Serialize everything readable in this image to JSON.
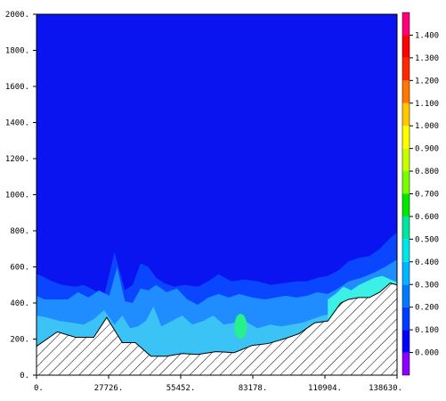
{
  "chart_data": {
    "type": "heatmap",
    "title": "",
    "xlabel": "",
    "ylabel": "",
    "xlim": [
      0,
      138630
    ],
    "ylim": [
      0,
      2000
    ],
    "x_ticks": [
      {
        "v": 0,
        "label": "0."
      },
      {
        "v": 27726,
        "label": "27726."
      },
      {
        "v": 55452,
        "label": "55452."
      },
      {
        "v": 83178,
        "label": "83178."
      },
      {
        "v": 110904,
        "label": "110904."
      },
      {
        "v": 138630,
        "label": "138630."
      }
    ],
    "y_ticks": [
      {
        "v": 0,
        "label": "0."
      },
      {
        "v": 200,
        "label": "200."
      },
      {
        "v": 400,
        "label": "400."
      },
      {
        "v": 600,
        "label": "600."
      },
      {
        "v": 800,
        "label": "800."
      },
      {
        "v": 1000,
        "label": "1000."
      },
      {
        "v": 1200,
        "label": "1200."
      },
      {
        "v": 1400,
        "label": "1400."
      },
      {
        "v": 1600,
        "label": "1600."
      },
      {
        "v": 1800,
        "label": "1800."
      },
      {
        "v": 2000,
        "label": "2000."
      }
    ],
    "colorbar": {
      "levels": [
        -0.1,
        0.0,
        0.1,
        0.2,
        0.3,
        0.4,
        0.5,
        0.6,
        0.7,
        0.8,
        0.9,
        1.0,
        1.1,
        1.2,
        1.3,
        1.4,
        1.5
      ],
      "colors": [
        "#8a00ff",
        "#0000ff",
        "#003cff",
        "#0078ff",
        "#00b4ff",
        "#00e6e6",
        "#00e6a0",
        "#00e600",
        "#78ff00",
        "#c8ff00",
        "#ffff00",
        "#ffc800",
        "#ff7800",
        "#ff2800",
        "#ff0000",
        "#ff0078",
        "#ff00ff"
      ],
      "labels": [
        {
          "v": 0.0,
          "label": "0.000"
        },
        {
          "v": 0.1,
          "label": "0.100"
        },
        {
          "v": 0.2,
          "label": "0.200"
        },
        {
          "v": 0.3,
          "label": "0.300"
        },
        {
          "v": 0.4,
          "label": "0.400"
        },
        {
          "v": 0.5,
          "label": "0.500"
        },
        {
          "v": 0.6,
          "label": "0.600"
        },
        {
          "v": 0.7,
          "label": "0.700"
        },
        {
          "v": 0.8,
          "label": "0.800"
        },
        {
          "v": 0.9,
          "label": "0.900"
        },
        {
          "v": 1.0,
          "label": "1.000"
        },
        {
          "v": 1.1,
          "label": "1.100"
        },
        {
          "v": 1.2,
          "label": "1.200"
        },
        {
          "v": 1.3,
          "label": "1.300"
        },
        {
          "v": 1.4,
          "label": "1.400"
        }
      ]
    },
    "field_colors": {
      "background": "#0a14f0",
      "band1": "#0a46ff",
      "band2": "#1f8cff",
      "band3": "#3cc3f5",
      "band4": "#3cf0e6",
      "band5": "#28f08c"
    },
    "terrain": {
      "x": [
        0,
        3000,
        8000,
        15000,
        22000,
        27000,
        33000,
        38000,
        44000,
        50000,
        56000,
        62000,
        69000,
        76000,
        83000,
        89000,
        95000,
        101000,
        107000,
        112000,
        117000,
        120000,
        124000,
        128000,
        132000,
        136000,
        138630
      ],
      "y": [
        160,
        190,
        240,
        210,
        210,
        320,
        180,
        180,
        105,
        105,
        120,
        115,
        130,
        125,
        165,
        175,
        200,
        230,
        290,
        300,
        400,
        420,
        430,
        430,
        460,
        510,
        500
      ]
    },
    "contours": [
      {
        "level": 0.1,
        "x": [
          0,
          2000,
          6000,
          10000,
          15000,
          18000,
          21000,
          26000,
          30000,
          34000,
          37000,
          40000,
          43000,
          46000,
          49000,
          53000,
          57000,
          62000,
          66000,
          70000,
          75000,
          80000,
          85000,
          90000,
          95000,
          100000,
          104000,
          108000,
          112000,
          116000,
          120000,
          124000,
          128000,
          132000,
          136000,
          138630
        ],
        "y": [
          560,
          550,
          520,
          500,
          490,
          500,
          480,
          440,
          680,
          470,
          500,
          620,
          600,
          540,
          510,
          490,
          500,
          490,
          520,
          560,
          520,
          530,
          520,
          500,
          510,
          520,
          520,
          540,
          550,
          580,
          630,
          650,
          660,
          700,
          760,
          790
        ]
      },
      {
        "level": 0.2,
        "x": [
          0,
          3000,
          7000,
          12000,
          16000,
          20000,
          24000,
          28000,
          31000,
          34000,
          37000,
          40000,
          43000,
          46000,
          50000,
          54000,
          58000,
          62000,
          66000,
          70000,
          74000,
          78000,
          83000,
          88000,
          92000,
          96000,
          100000,
          104000,
          108000,
          112000,
          116000,
          120000,
          125000,
          130000,
          134000,
          138630
        ],
        "y": [
          440,
          420,
          420,
          420,
          460,
          430,
          470,
          440,
          600,
          410,
          400,
          480,
          470,
          500,
          460,
          480,
          420,
          390,
          430,
          450,
          430,
          450,
          430,
          420,
          430,
          440,
          430,
          440,
          460,
          450,
          480,
          520,
          540,
          570,
          600,
          640
        ]
      },
      {
        "level": 0.3,
        "x": [
          0,
          4000,
          9000,
          14000,
          18000,
          22000,
          26000,
          30000,
          33000,
          36000,
          39000,
          42000,
          45000,
          48000,
          52000,
          56000,
          60000,
          64000,
          68000,
          72000,
          76000,
          80000,
          85000,
          90000,
          94000,
          98000,
          102000,
          106000,
          110000,
          114000,
          118000,
          122000,
          126000,
          130000,
          134000,
          138630
        ],
        "y": [
          330,
          320,
          300,
          290,
          280,
          310,
          360,
          280,
          330,
          260,
          270,
          300,
          380,
          270,
          300,
          330,
          280,
          300,
          330,
          280,
          290,
          300,
          260,
          280,
          270,
          280,
          290,
          310,
          330,
          340,
          380,
          430,
          440,
          450,
          470,
          490
        ]
      },
      {
        "level": 0.4,
        "x": [
          112000,
          115000,
          118000,
          121000,
          124000,
          127000,
          130000,
          133000,
          136000,
          138630
        ],
        "y": [
          420,
          450,
          490,
          470,
          500,
          520,
          540,
          550,
          530,
          515
        ]
      }
    ],
    "blobs": [
      {
        "level": 0.4,
        "cx": 78500,
        "cy": 270,
        "rx": 2400,
        "ry": 70
      }
    ],
    "hatch_region": "terrain"
  }
}
